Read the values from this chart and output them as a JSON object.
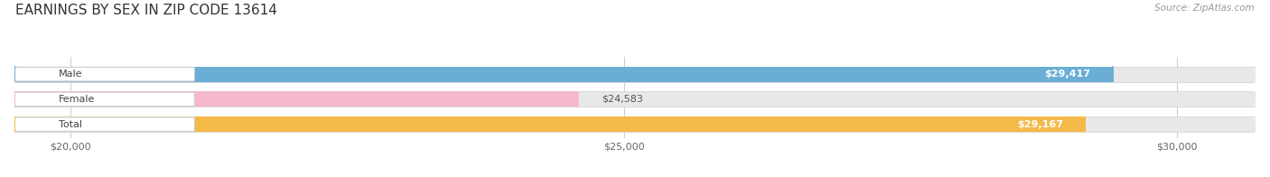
{
  "title": "EARNINGS BY SEX IN ZIP CODE 13614",
  "source": "Source: ZipAtlas.com",
  "categories": [
    "Male",
    "Female",
    "Total"
  ],
  "values": [
    29417,
    24583,
    29167
  ],
  "bar_colors": [
    "#6aaed6",
    "#f4b8cc",
    "#f5b94a"
  ],
  "bar_bg_color": "#e8e8e8",
  "bar_edge_color": "#d0d0d0",
  "label_fg": [
    "#ffffff",
    "#555555",
    "#ffffff"
  ],
  "xmin": 19500,
  "xmax": 30700,
  "xticks": [
    20000,
    25000,
    30000
  ],
  "xtick_labels": [
    "$20,000",
    "$25,000",
    "$30,000"
  ],
  "value_labels": [
    "$29,417",
    "$24,583",
    "$29,167"
  ],
  "title_fontsize": 11,
  "source_fontsize": 7.5,
  "tick_fontsize": 8,
  "bar_label_fontsize": 8,
  "cat_label_fontsize": 8,
  "background_color": "#ffffff",
  "bar_height": 0.62,
  "pill_color": "#ffffff",
  "pill_edge_color": "#cccccc"
}
